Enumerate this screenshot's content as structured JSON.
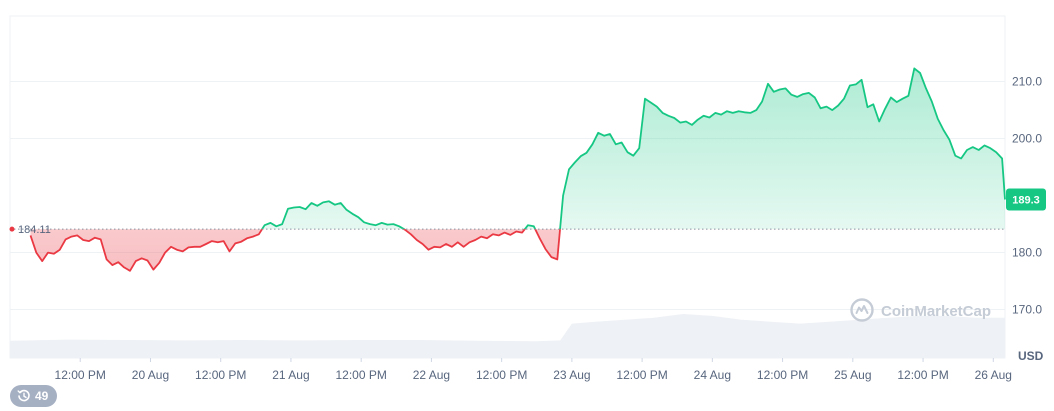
{
  "chart_data": {
    "type": "line",
    "x_tick_labels": [
      "12:00 PM",
      "20 Aug",
      "12:00 PM",
      "21 Aug",
      "12:00 PM",
      "22 Aug",
      "12:00 PM",
      "23 Aug",
      "12:00 PM",
      "24 Aug",
      "12:00 PM",
      "25 Aug",
      "12:00 PM",
      "26 Aug"
    ],
    "x_tick_positions_hours": [
      12,
      24,
      36,
      48,
      60,
      72,
      84,
      96,
      108,
      120,
      132,
      144,
      156,
      168
    ],
    "x_range_hours": [
      0,
      170
    ],
    "y_ticks": [
      170.0,
      180.0,
      200.0,
      210.0
    ],
    "ylim": [
      161.5,
      221.5
    ],
    "y_unit": "USD",
    "baseline": 184.11,
    "baseline_label": "184.11",
    "current_price": 189.3,
    "current_price_label": "189.3",
    "colors": {
      "above": "#16c784",
      "below": "#ea3943",
      "grid": "#eff2f5",
      "axis_text": "#58667e",
      "volume": "#eef1f5"
    },
    "grid": true,
    "watermark": "CoinMarketCap",
    "series": [
      {
        "points": [
          [
            3.5,
            183.0
          ],
          [
            4.5,
            180.0
          ],
          [
            5.5,
            178.5
          ],
          [
            6.5,
            180.0
          ],
          [
            7.5,
            179.8
          ],
          [
            8.5,
            180.5
          ],
          [
            9.5,
            182.3
          ],
          [
            10.5,
            182.8
          ],
          [
            11.5,
            183.0
          ],
          [
            12.5,
            182.2
          ],
          [
            13.5,
            182.0
          ],
          [
            14.5,
            182.6
          ],
          [
            15.5,
            182.3
          ],
          [
            16.5,
            178.8
          ],
          [
            17.5,
            177.8
          ],
          [
            18.5,
            178.3
          ],
          [
            19.5,
            177.4
          ],
          [
            20.5,
            176.8
          ],
          [
            21.5,
            178.5
          ],
          [
            22.5,
            179.0
          ],
          [
            23.5,
            178.6
          ],
          [
            24.5,
            177.0
          ],
          [
            25.5,
            178.2
          ],
          [
            26.5,
            180.0
          ],
          [
            27.5,
            181.0
          ],
          [
            28.5,
            180.5
          ],
          [
            29.5,
            180.2
          ],
          [
            30.5,
            180.9
          ],
          [
            31.5,
            181.0
          ],
          [
            32.5,
            181.0
          ],
          [
            33.5,
            181.5
          ],
          [
            34.5,
            182.0
          ],
          [
            35.5,
            181.8
          ],
          [
            36.5,
            182.0
          ],
          [
            37.5,
            180.2
          ],
          [
            38.5,
            181.6
          ],
          [
            39.5,
            181.9
          ],
          [
            40.5,
            182.5
          ],
          [
            41.5,
            182.8
          ],
          [
            42.5,
            183.2
          ],
          [
            43.5,
            184.8
          ],
          [
            44.5,
            185.2
          ],
          [
            45.5,
            184.6
          ],
          [
            46.5,
            185.0
          ],
          [
            47.5,
            187.7
          ],
          [
            48.5,
            187.9
          ],
          [
            49.5,
            188.0
          ],
          [
            50.5,
            187.6
          ],
          [
            51.5,
            188.7
          ],
          [
            52.5,
            188.2
          ],
          [
            53.5,
            188.8
          ],
          [
            54.5,
            189.0
          ],
          [
            55.5,
            188.4
          ],
          [
            56.5,
            188.7
          ],
          [
            57.5,
            187.5
          ],
          [
            58.5,
            186.8
          ],
          [
            59.5,
            186.2
          ],
          [
            60.5,
            185.3
          ],
          [
            61.5,
            185.0
          ],
          [
            62.5,
            184.8
          ],
          [
            63.5,
            185.2
          ],
          [
            64.5,
            184.9
          ],
          [
            65.5,
            185.0
          ],
          [
            66.5,
            184.6
          ],
          [
            67.5,
            184.0
          ],
          [
            68.5,
            183.2
          ],
          [
            69.5,
            182.2
          ],
          [
            70.5,
            181.5
          ],
          [
            71.5,
            180.5
          ],
          [
            72.5,
            181.0
          ],
          [
            73.5,
            180.9
          ],
          [
            74.5,
            181.5
          ],
          [
            75.5,
            181.0
          ],
          [
            76.5,
            181.8
          ],
          [
            77.5,
            181.0
          ],
          [
            78.5,
            181.8
          ],
          [
            79.5,
            182.2
          ],
          [
            80.5,
            182.8
          ],
          [
            81.5,
            182.5
          ],
          [
            82.5,
            183.2
          ],
          [
            83.5,
            183.0
          ],
          [
            84.5,
            183.5
          ],
          [
            85.5,
            183.1
          ],
          [
            86.5,
            183.7
          ],
          [
            87.5,
            183.5
          ],
          [
            88.5,
            184.8
          ],
          [
            89.5,
            184.6
          ],
          [
            90.5,
            182.5
          ],
          [
            91.5,
            180.6
          ],
          [
            92.5,
            179.2
          ],
          [
            93.5,
            178.8
          ],
          [
            94.5,
            190.0
          ],
          [
            95.5,
            194.6
          ],
          [
            96.5,
            195.8
          ],
          [
            97.5,
            196.9
          ],
          [
            98.5,
            197.5
          ],
          [
            99.5,
            199.0
          ],
          [
            100.5,
            201.0
          ],
          [
            101.5,
            200.5
          ],
          [
            102.5,
            200.8
          ],
          [
            103.5,
            199.0
          ],
          [
            104.5,
            199.3
          ],
          [
            105.5,
            197.6
          ],
          [
            106.5,
            197.0
          ],
          [
            107.5,
            198.3
          ],
          [
            108.5,
            207.0
          ],
          [
            109.5,
            206.3
          ],
          [
            110.5,
            205.6
          ],
          [
            111.5,
            204.5
          ],
          [
            112.5,
            204.0
          ],
          [
            113.5,
            203.6
          ],
          [
            114.5,
            202.8
          ],
          [
            115.5,
            203.0
          ],
          [
            116.5,
            202.4
          ],
          [
            117.5,
            203.3
          ],
          [
            118.5,
            204.0
          ],
          [
            119.5,
            203.7
          ],
          [
            120.5,
            204.5
          ],
          [
            121.5,
            204.2
          ],
          [
            122.5,
            204.8
          ],
          [
            123.5,
            204.5
          ],
          [
            124.5,
            204.8
          ],
          [
            125.5,
            204.6
          ],
          [
            126.5,
            204.5
          ],
          [
            127.5,
            205.0
          ],
          [
            128.5,
            206.5
          ],
          [
            129.5,
            209.6
          ],
          [
            130.5,
            208.2
          ],
          [
            131.5,
            208.6
          ],
          [
            132.5,
            208.8
          ],
          [
            133.5,
            207.7
          ],
          [
            134.5,
            207.3
          ],
          [
            135.5,
            207.8
          ],
          [
            136.5,
            208.0
          ],
          [
            137.5,
            207.2
          ],
          [
            138.5,
            205.3
          ],
          [
            139.5,
            205.6
          ],
          [
            140.5,
            205.0
          ],
          [
            141.5,
            205.8
          ],
          [
            142.5,
            207.0
          ],
          [
            143.5,
            209.3
          ],
          [
            144.5,
            209.5
          ],
          [
            145.5,
            210.3
          ],
          [
            146.5,
            205.5
          ],
          [
            147.5,
            206.0
          ],
          [
            148.5,
            203.0
          ],
          [
            149.5,
            205.2
          ],
          [
            150.5,
            207.2
          ],
          [
            151.5,
            206.4
          ],
          [
            152.5,
            207.0
          ],
          [
            153.5,
            207.5
          ],
          [
            154.5,
            212.3
          ],
          [
            155.5,
            211.5
          ],
          [
            156.5,
            208.8
          ],
          [
            157.5,
            206.5
          ],
          [
            158.5,
            203.5
          ],
          [
            159.5,
            201.5
          ],
          [
            160.5,
            199.8
          ],
          [
            161.5,
            197.0
          ],
          [
            162.5,
            196.5
          ],
          [
            163.5,
            198.0
          ],
          [
            164.5,
            198.5
          ],
          [
            165.5,
            198.0
          ],
          [
            166.5,
            198.8
          ],
          [
            167.5,
            198.3
          ],
          [
            168.5,
            197.6
          ],
          [
            169.5,
            196.5
          ],
          [
            170.0,
            189.3
          ]
        ]
      }
    ],
    "volume_profile": [
      [
        0,
        0.45
      ],
      [
        10,
        0.48
      ],
      [
        20,
        0.47
      ],
      [
        30,
        0.46
      ],
      [
        40,
        0.47
      ],
      [
        50,
        0.46
      ],
      [
        60,
        0.47
      ],
      [
        70,
        0.47
      ],
      [
        80,
        0.45
      ],
      [
        90,
        0.44
      ],
      [
        94,
        0.46
      ],
      [
        96,
        0.9
      ],
      [
        100,
        0.95
      ],
      [
        105,
        1.0
      ],
      [
        110,
        1.05
      ],
      [
        115,
        1.15
      ],
      [
        120,
        1.1
      ],
      [
        125,
        1.0
      ],
      [
        130,
        0.95
      ],
      [
        135,
        0.9
      ],
      [
        140,
        0.95
      ],
      [
        145,
        1.0
      ],
      [
        150,
        1.05
      ],
      [
        155,
        1.1
      ],
      [
        160,
        1.1
      ],
      [
        165,
        1.05
      ],
      [
        170,
        1.05
      ]
    ]
  },
  "badge": {
    "icon": "history-icon",
    "count": "49"
  }
}
